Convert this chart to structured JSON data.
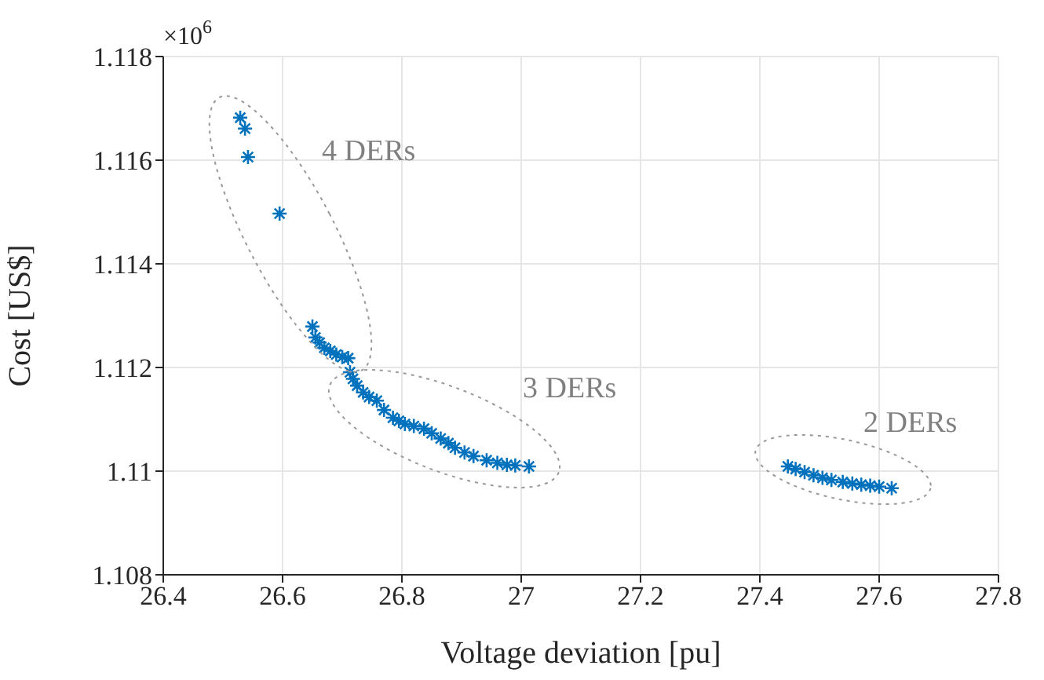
{
  "chart_data": {
    "type": "scatter",
    "xlabel": "Voltage deviation [pu]",
    "ylabel": "Cost [US$]",
    "xlim": [
      26.4,
      27.8
    ],
    "xticks": [
      26.4,
      26.6,
      26.8,
      27,
      27.2,
      27.4,
      27.6,
      27.8
    ],
    "ylim": [
      1.108,
      1.118
    ],
    "yticks": [
      1.108,
      1.11,
      1.112,
      1.114,
      1.116,
      1.118
    ],
    "grid": true,
    "marker": "cross",
    "annotations": [
      "×10$^{6}$",
      "4 DERs",
      "3 DERs",
      "2 DERs"
    ],
    "series": [
      {
        "color": "#0072bd",
        "x": [
          26.529,
          26.537,
          26.542,
          26.595,
          26.65,
          26.655,
          26.662,
          26.67,
          26.68,
          26.69,
          26.7,
          26.71,
          26.713,
          26.718,
          26.725,
          26.735,
          26.745,
          26.758,
          26.77,
          26.785,
          26.795,
          26.805,
          26.82,
          26.837,
          26.85,
          26.865,
          26.878,
          26.889,
          26.905,
          26.92,
          26.942,
          26.96,
          26.976,
          26.99,
          27.013,
          27.447,
          27.46,
          27.475,
          27.49,
          27.505,
          27.52,
          27.539,
          27.555,
          27.57,
          27.585,
          27.6,
          27.621
        ],
        "values": [
          1.11682,
          1.11661,
          1.11606,
          1.11497,
          1.11279,
          1.11258,
          1.11248,
          1.11238,
          1.11232,
          1.11225,
          1.1122,
          1.11218,
          1.11191,
          1.11178,
          1.11165,
          1.11152,
          1.11143,
          1.11136,
          1.11118,
          1.11103,
          1.11097,
          1.11091,
          1.11087,
          1.11082,
          1.11073,
          1.11063,
          1.11054,
          1.11045,
          1.11036,
          1.11029,
          1.11021,
          1.11016,
          1.11012,
          1.11011,
          1.11009,
          1.11009,
          1.11004,
          1.10998,
          1.10992,
          1.10987,
          1.10983,
          1.10979,
          1.10976,
          1.10974,
          1.10972,
          1.1097,
          1.10967
        ]
      }
    ]
  }
}
